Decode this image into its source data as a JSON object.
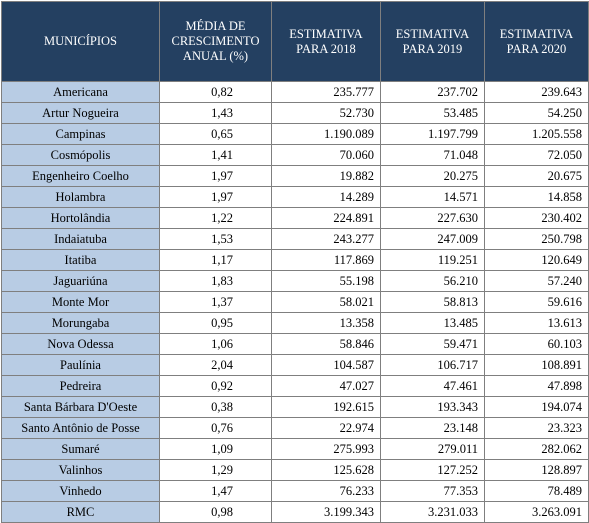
{
  "headers": {
    "municipios": "MUNICÍPIOS",
    "media": [
      "MÉDIA DE",
      "CRESCIMENTO",
      "ANUAL (%)"
    ],
    "est2018": [
      "ESTIMATIVA",
      "PARA 2018"
    ],
    "est2019": [
      "ESTIMATIVA",
      "PARA 2019"
    ],
    "est2020": [
      "ESTIMATIVA",
      "PARA 2020"
    ]
  },
  "rows": [
    {
      "municipio": "Americana",
      "media": "0,82",
      "e2018": "235.777",
      "e2019": "237.702",
      "e2020": "239.643"
    },
    {
      "municipio": "Artur Nogueira",
      "media": "1,43",
      "e2018": "52.730",
      "e2019": "53.485",
      "e2020": "54.250"
    },
    {
      "municipio": "Campinas",
      "media": "0,65",
      "e2018": "1.190.089",
      "e2019": "1.197.799",
      "e2020": "1.205.558"
    },
    {
      "municipio": "Cosmópolis",
      "media": "1,41",
      "e2018": "70.060",
      "e2019": "71.048",
      "e2020": "72.050"
    },
    {
      "municipio": "Engenheiro Coelho",
      "media": "1,97",
      "e2018": "19.882",
      "e2019": "20.275",
      "e2020": "20.675"
    },
    {
      "municipio": "Holambra",
      "media": "1,97",
      "e2018": "14.289",
      "e2019": "14.571",
      "e2020": "14.858"
    },
    {
      "municipio": "Hortolândia",
      "media": "1,22",
      "e2018": "224.891",
      "e2019": "227.630",
      "e2020": "230.402"
    },
    {
      "municipio": "Indaiatuba",
      "media": "1,53",
      "e2018": "243.277",
      "e2019": "247.009",
      "e2020": "250.798"
    },
    {
      "municipio": "Itatiba",
      "media": "1,17",
      "e2018": "117.869",
      "e2019": "119.251",
      "e2020": "120.649"
    },
    {
      "municipio": "Jaguariúna",
      "media": "1,83",
      "e2018": "55.198",
      "e2019": "56.210",
      "e2020": "57.240"
    },
    {
      "municipio": "Monte Mor",
      "media": "1,37",
      "e2018": "58.021",
      "e2019": "58.813",
      "e2020": "59.616"
    },
    {
      "municipio": "Morungaba",
      "media": "0,95",
      "e2018": "13.358",
      "e2019": "13.485",
      "e2020": "13.613"
    },
    {
      "municipio": "Nova Odessa",
      "media": "1,06",
      "e2018": "58.846",
      "e2019": "59.471",
      "e2020": "60.103"
    },
    {
      "municipio": "Paulínia",
      "media": "2,04",
      "e2018": "104.587",
      "e2019": "106.717",
      "e2020": "108.891"
    },
    {
      "municipio": "Pedreira",
      "media": "0,92",
      "e2018": "47.027",
      "e2019": "47.461",
      "e2020": "47.898"
    },
    {
      "municipio": "Santa Bárbara D'Oeste",
      "media": "0,38",
      "e2018": "192.615",
      "e2019": "193.343",
      "e2020": "194.074"
    },
    {
      "municipio": "Santo Antônio de Posse",
      "media": "0,76",
      "e2018": "22.974",
      "e2019": "23.148",
      "e2020": "23.323"
    },
    {
      "municipio": "Sumaré",
      "media": "1,09",
      "e2018": "275.993",
      "e2019": "279.011",
      "e2020": "282.062"
    },
    {
      "municipio": "Valinhos",
      "media": "1,29",
      "e2018": "125.628",
      "e2019": "127.252",
      "e2020": "128.897"
    },
    {
      "municipio": "Vinhedo",
      "media": "1,47",
      "e2018": "76.233",
      "e2019": "77.353",
      "e2020": "78.489"
    },
    {
      "municipio": "RMC",
      "media": "0,98",
      "e2018": "3.199.343",
      "e2019": "3.231.033",
      "e2020": "3.263.091"
    }
  ],
  "colors": {
    "header_bg": "#244061",
    "name_bg": "#b8cce4",
    "border": "#7f7f7f"
  }
}
